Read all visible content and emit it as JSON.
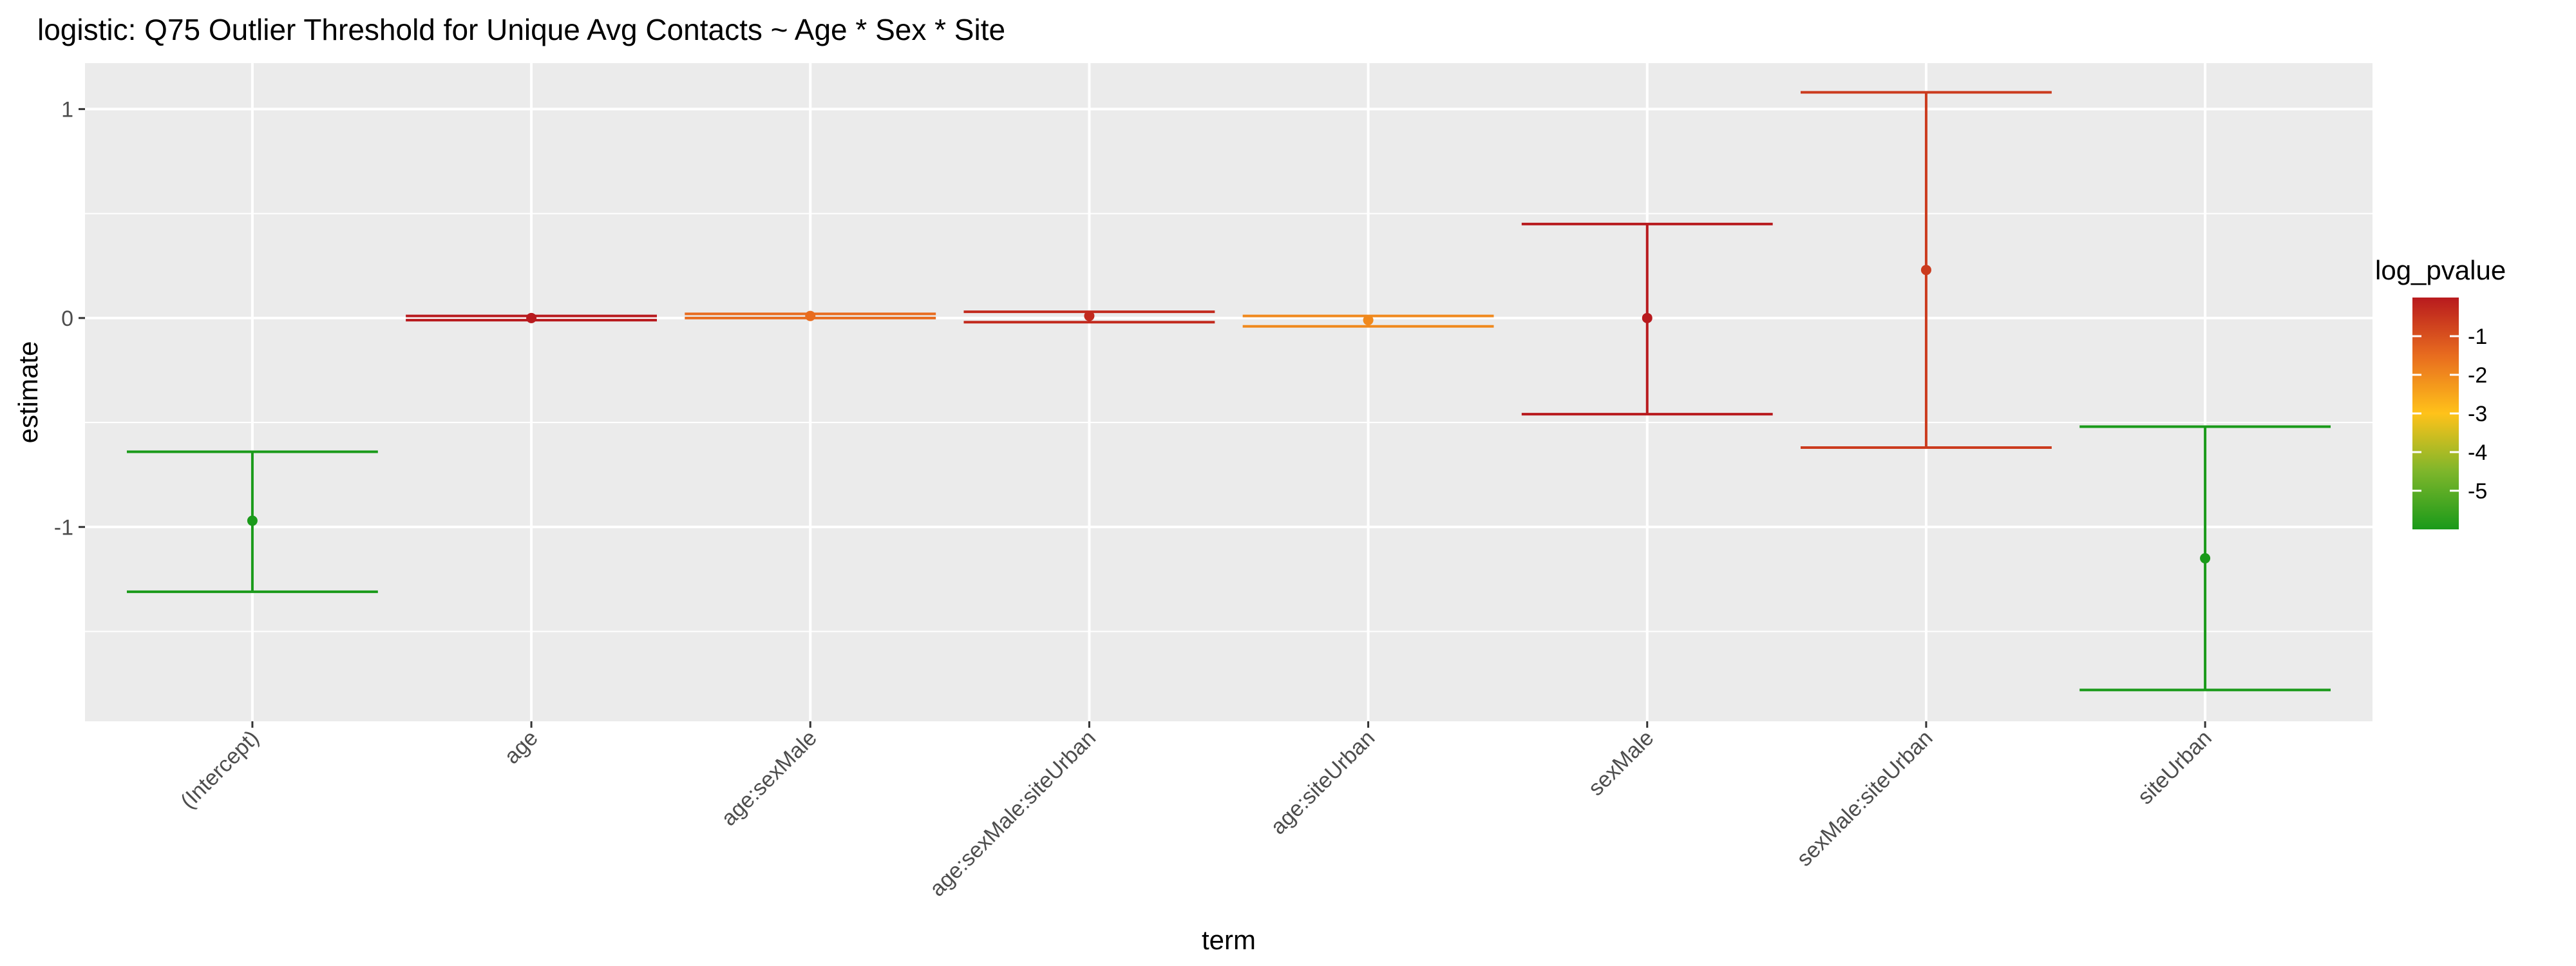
{
  "chart_data": {
    "type": "scatter",
    "title": "logistic: Q75 Outlier Threshold for Unique Avg Contacts ~ Age * Sex * Site",
    "xlabel": "term",
    "ylabel": "estimate",
    "categories": [
      "(Intercept)",
      "age",
      "age:sexMale",
      "age:sexMale:siteUrban",
      "age:siteUrban",
      "sexMale",
      "sexMale:siteUrban",
      "siteUrban"
    ],
    "estimate": [
      -0.97,
      0.0,
      0.01,
      0.01,
      -0.01,
      0.0,
      0.23,
      -1.15
    ],
    "conf_low": [
      -1.31,
      -0.01,
      0.0,
      -0.02,
      -0.04,
      -0.46,
      -0.62,
      -1.78
    ],
    "conf_high": [
      -0.64,
      0.01,
      0.02,
      0.03,
      0.01,
      0.45,
      1.08,
      -0.52
    ],
    "log_pvalue": [
      -6.0,
      0.0,
      -1.5,
      -0.3,
      -2.0,
      0.0,
      -0.6,
      -6.0
    ],
    "ylim": [
      -1.93,
      1.22
    ],
    "yticks": [
      -1,
      0,
      1
    ],
    "grid": true,
    "legend": {
      "title": "log_pvalue",
      "position": "right",
      "type": "colorbar",
      "labels": [
        "-1",
        "-2",
        "-3",
        "-4",
        "-5"
      ],
      "tick_values": [
        -1,
        -2,
        -3,
        -4,
        -5
      ],
      "range": [
        -6.0,
        0.0
      ],
      "colors": [
        "#1a9a1a",
        "#7eb62b",
        "#ffc21a",
        "#e86c1f",
        "#b81a1e"
      ]
    },
    "panel_background": "#ebebeb",
    "grid_color": "#ffffff"
  }
}
